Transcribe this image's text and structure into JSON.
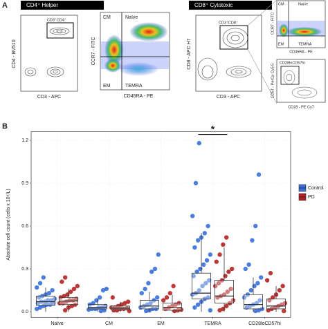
{
  "panel_a": {
    "label": "A",
    "helper_header": "CD4⁺ Helper",
    "cytotoxic_header": "CD8⁺ Cytotoxic",
    "p1": {
      "ylabel": "CD4 - BV510",
      "xlabel": "CD3 - APC",
      "gate": "CD3⁺CD4⁺"
    },
    "p2": {
      "ylabel": "CCR7 - FITC",
      "xlabel": "CD45RA - PE",
      "q_tl": "CM",
      "q_tr": "Naïve",
      "q_bl": "EM",
      "q_br": "TEMRA"
    },
    "p3": {
      "ylabel": "CD8 - APC H7",
      "xlabel": "CD3 - APC",
      "gate": "CD3⁺CD8⁺"
    },
    "p4": {
      "ylabel": "CCR7 - FITC",
      "xlabel": "CD45RA - PE",
      "q_tl": "CM",
      "q_tr": "Naïve",
      "q_bl": "EM",
      "q_br": "TEMRA"
    },
    "p5": {
      "ylabel": "CD57 - PerCp Cy5.5",
      "xlabel": "CD28 - PE Cy7",
      "gate": "CD28loCD57hi"
    }
  },
  "chart_data": {
    "type": "box",
    "panel_label": "B",
    "ylabel": "Absolute cell count (cells x 10⁹/L)",
    "categories": [
      "Naïve",
      "CM",
      "EM",
      "TEMRA",
      "CD28loCD57hi"
    ],
    "ylim": [
      -0.04,
      1.26
    ],
    "yticks": [
      {
        "value": 0,
        "label": "0.0"
      },
      0.3,
      0.6,
      0.9,
      1.2
    ],
    "grid": true,
    "legend_position": "right",
    "annotation": "*",
    "annotation_category": 3,
    "series": [
      {
        "name": "Control",
        "color": "#3a6fd8",
        "boxes": [
          {
            "low": 0,
            "q1": 0.045,
            "median": 0.07,
            "q3": 0.11,
            "high": 0.17
          },
          {
            "low": 0,
            "q1": 0.02,
            "median": 0.03,
            "q3": 0.05,
            "high": 0.09
          },
          {
            "low": 0,
            "q1": 0.02,
            "median": 0.04,
            "q3": 0.08,
            "high": 0.14
          },
          {
            "low": 0,
            "q1": 0.09,
            "median": 0.13,
            "q3": 0.27,
            "high": 0.55
          },
          {
            "low": 0,
            "q1": 0.02,
            "median": 0.05,
            "q3": 0.12,
            "high": 0.24
          }
        ],
        "points": [
          [
            0.02,
            0.03,
            0.04,
            0.05,
            0.05,
            0.06,
            0.06,
            0.07,
            0.07,
            0.08,
            0.08,
            0.09,
            0.1,
            0.11,
            0.12,
            0.13,
            0.15,
            0.17,
            0.2,
            0.24
          ],
          [
            0.005,
            0.01,
            0.015,
            0.02,
            0.02,
            0.03,
            0.03,
            0.04,
            0.05,
            0.06,
            0.08,
            0.1,
            0.15,
            0.16
          ],
          [
            0.005,
            0.01,
            0.02,
            0.02,
            0.03,
            0.04,
            0.05,
            0.06,
            0.08,
            0.1,
            0.13,
            0.16,
            0.2,
            0.28,
            0.3,
            0.4
          ],
          [
            0.01,
            0.03,
            0.05,
            0.07,
            0.09,
            0.1,
            0.12,
            0.13,
            0.15,
            0.18,
            0.2,
            0.22,
            0.25,
            0.28,
            0.3,
            0.33,
            0.36,
            0.4,
            0.45,
            0.5,
            0.52,
            0.55,
            0.6,
            0.67,
            0.9,
            1.18
          ],
          [
            0.005,
            0.01,
            0.02,
            0.03,
            0.04,
            0.05,
            0.06,
            0.08,
            0.1,
            0.12,
            0.15,
            0.18,
            0.2,
            0.24,
            0.3,
            0.33,
            0.5,
            0.6,
            0.96
          ]
        ]
      },
      {
        "name": "PD",
        "color": "#b22222",
        "boxes": [
          {
            "low": 0,
            "q1": 0.05,
            "median": 0.075,
            "q3": 0.1,
            "high": 0.16
          },
          {
            "low": 0,
            "q1": 0.015,
            "median": 0.025,
            "q3": 0.04,
            "high": 0.07
          },
          {
            "low": 0,
            "q1": 0.01,
            "median": 0.03,
            "q3": 0.06,
            "high": 0.12
          },
          {
            "low": 0,
            "q1": 0.06,
            "median": 0.11,
            "q3": 0.22,
            "high": 0.45
          },
          {
            "low": 0,
            "q1": 0.02,
            "median": 0.04,
            "q3": 0.09,
            "high": 0.18
          }
        ],
        "points": [
          [
            0.01,
            0.03,
            0.04,
            0.05,
            0.06,
            0.06,
            0.07,
            0.08,
            0.08,
            0.09,
            0.1,
            0.11,
            0.12,
            0.14,
            0.16,
            0.18,
            0.21,
            0.24
          ],
          [
            0.005,
            0.01,
            0.01,
            0.02,
            0.02,
            0.025,
            0.03,
            0.03,
            0.04,
            0.05,
            0.06,
            0.07,
            0.1
          ],
          [
            0.005,
            0.01,
            0.015,
            0.02,
            0.03,
            0.04,
            0.05,
            0.06,
            0.08,
            0.1,
            0.13,
            0.18
          ],
          [
            0.01,
            0.02,
            0.04,
            0.06,
            0.08,
            0.1,
            0.11,
            0.12,
            0.14,
            0.16,
            0.18,
            0.2,
            0.22,
            0.25,
            0.28,
            0.3,
            0.35,
            0.4,
            0.47,
            0.52
          ],
          [
            0.005,
            0.01,
            0.02,
            0.03,
            0.04,
            0.05,
            0.06,
            0.08,
            0.1,
            0.12,
            0.15,
            0.18,
            0.22,
            0.27
          ]
        ]
      }
    ]
  }
}
